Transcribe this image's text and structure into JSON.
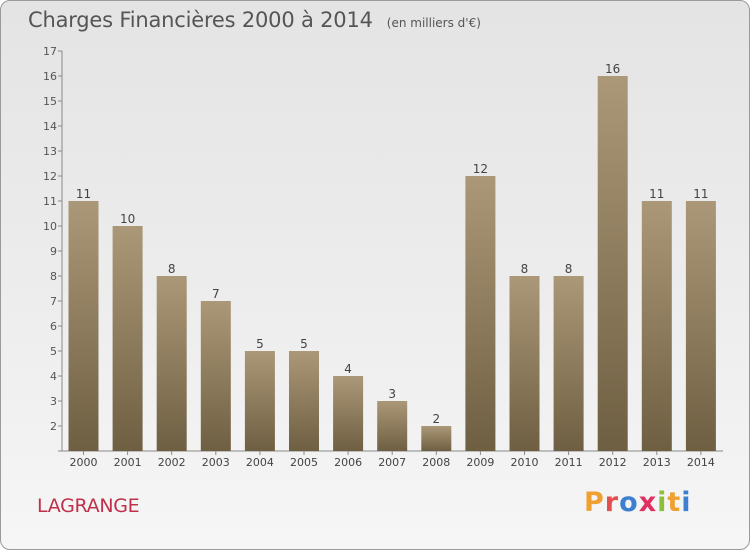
{
  "header": {
    "title": "Charges Financières 2000 à 2014",
    "subtitle": "(en milliers d'€)"
  },
  "footer": {
    "commune": "LAGRANGE",
    "brand": "Proxiti"
  },
  "colors": {
    "bar_top": "#ab9878",
    "bar_bottom": "#6f5f42",
    "commune_text": "#c0304a",
    "brand_letters": [
      "#f0a030",
      "#e05050",
      "#3d7fd0",
      "#e03060",
      "#8cbf3a",
      "#f0a030",
      "#3d7fd0"
    ]
  },
  "chart_data": {
    "type": "bar",
    "title": "Charges Financières 2000 à 2014",
    "subtitle": "(en milliers d'€)",
    "categories": [
      "2000",
      "2001",
      "2002",
      "2003",
      "2004",
      "2005",
      "2006",
      "2007",
      "2008",
      "2009",
      "2010",
      "2011",
      "2012",
      "2013",
      "2014"
    ],
    "values": [
      11,
      10,
      8,
      7,
      5,
      5,
      4,
      3,
      2,
      12,
      8,
      8,
      16,
      11,
      11
    ],
    "yticks": [
      "2",
      "3",
      "4",
      "5",
      "6",
      "7",
      "8",
      "9",
      "10",
      "11",
      "12",
      "13",
      "14",
      "15",
      "16",
      "17"
    ],
    "ylim": [
      1,
      17
    ],
    "grid": false,
    "data_labels": true
  }
}
